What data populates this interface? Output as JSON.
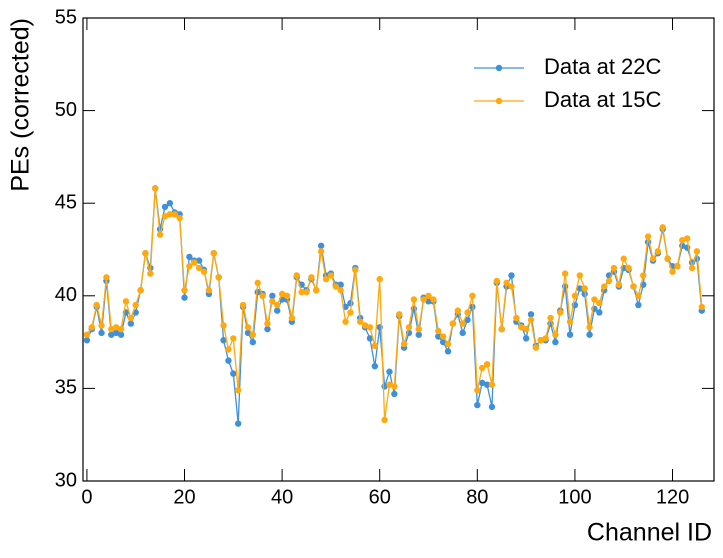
{
  "chart_data": {
    "type": "line",
    "x_label": "Channel ID",
    "y_label": "PEs (corrected)",
    "x": [
      0,
      1,
      2,
      3,
      4,
      5,
      6,
      7,
      8,
      9,
      10,
      11,
      12,
      13,
      14,
      15,
      16,
      17,
      18,
      19,
      20,
      21,
      22,
      23,
      24,
      25,
      26,
      27,
      28,
      29,
      30,
      31,
      32,
      33,
      34,
      35,
      36,
      37,
      38,
      39,
      40,
      41,
      42,
      43,
      44,
      45,
      46,
      47,
      48,
      49,
      50,
      51,
      52,
      53,
      54,
      55,
      56,
      57,
      58,
      59,
      60,
      61,
      62,
      63,
      64,
      65,
      66,
      67,
      68,
      69,
      70,
      71,
      72,
      73,
      74,
      75,
      76,
      77,
      78,
      79,
      80,
      81,
      82,
      83,
      84,
      85,
      86,
      87,
      88,
      89,
      90,
      91,
      92,
      93,
      94,
      95,
      96,
      97,
      98,
      99,
      100,
      101,
      102,
      103,
      104,
      105,
      106,
      107,
      108,
      109,
      110,
      111,
      112,
      113,
      114,
      115,
      116,
      117,
      118,
      119,
      120,
      121,
      122,
      123,
      124,
      125,
      126
    ],
    "series": [
      {
        "name": "Data at 22C",
        "color": "#3f90da",
        "values": [
          37.6,
          38.2,
          39.4,
          38.0,
          40.8,
          37.9,
          38.0,
          37.9,
          39.1,
          38.5,
          39.1,
          40.3,
          42.3,
          41.5,
          45.8,
          43.6,
          44.8,
          45.0,
          44.5,
          44.4,
          39.9,
          42.1,
          41.9,
          41.9,
          41.4,
          40.1,
          42.3,
          41.0,
          37.6,
          36.5,
          35.8,
          33.1,
          39.4,
          38.0,
          37.5,
          40.2,
          40.1,
          38.2,
          40.0,
          39.2,
          39.8,
          39.8,
          38.6,
          41.0,
          40.6,
          40.3,
          40.9,
          40.3,
          42.7,
          41.1,
          41.2,
          40.6,
          40.6,
          39.4,
          39.6,
          41.5,
          38.8,
          38.3,
          37.7,
          36.2,
          38.3,
          35.1,
          35.9,
          34.7,
          38.9,
          37.2,
          38.0,
          39.3,
          37.9,
          39.9,
          39.7,
          39.7,
          37.8,
          37.5,
          37.0,
          38.5,
          39.0,
          38.0,
          38.7,
          39.4,
          34.1,
          35.3,
          35.2,
          34.0,
          40.7,
          38.2,
          40.5,
          41.1,
          38.6,
          38.4,
          37.7,
          39.0,
          37.3,
          37.6,
          37.6,
          38.5,
          37.5,
          39.2,
          40.5,
          37.9,
          39.5,
          40.4,
          40.1,
          37.9,
          39.3,
          39.1,
          40.3,
          41.1,
          41.3,
          40.5,
          41.5,
          41.4,
          40.5,
          39.5,
          40.6,
          42.9,
          41.9,
          42.3,
          43.6,
          42.0,
          41.6,
          41.6,
          42.7,
          42.6,
          41.8,
          42.0,
          39.2
        ]
      },
      {
        "name": "Data at 15C",
        "color": "#ffa90e",
        "values": [
          37.9,
          38.3,
          39.5,
          38.4,
          41.0,
          38.2,
          38.3,
          38.2,
          39.7,
          38.8,
          39.5,
          40.3,
          42.3,
          41.2,
          45.8,
          43.3,
          44.3,
          44.4,
          44.4,
          44.2,
          40.3,
          41.6,
          41.8,
          41.5,
          41.3,
          40.3,
          42.3,
          41.0,
          38.4,
          37.1,
          37.7,
          34.9,
          39.5,
          38.3,
          37.9,
          40.7,
          40.0,
          38.5,
          39.7,
          39.5,
          40.1,
          40.0,
          38.8,
          41.1,
          40.2,
          40.2,
          41.0,
          40.3,
          42.4,
          40.9,
          41.1,
          40.5,
          40.3,
          38.6,
          39.1,
          41.4,
          38.6,
          38.4,
          38.3,
          37.3,
          40.9,
          33.3,
          35.2,
          35.1,
          39.0,
          37.4,
          38.3,
          39.8,
          38.2,
          39.8,
          40.0,
          39.8,
          38.1,
          37.8,
          37.4,
          38.5,
          39.2,
          38.5,
          39.1,
          40.0,
          34.9,
          36.1,
          36.3,
          35.2,
          40.8,
          38.2,
          40.7,
          40.5,
          38.8,
          38.3,
          38.2,
          38.7,
          37.2,
          37.6,
          37.7,
          38.8,
          37.9,
          39.1,
          41.2,
          38.6,
          40.0,
          41.1,
          40.4,
          38.3,
          39.8,
          39.6,
          40.5,
          40.8,
          41.5,
          40.6,
          42.0,
          41.5,
          40.5,
          40.0,
          41.1,
          43.2,
          42.0,
          42.4,
          43.7,
          42.0,
          41.3,
          41.6,
          43.0,
          43.1,
          41.5,
          42.4,
          39.4
        ]
      }
    ],
    "xlim": [
      -0.8,
      128.5
    ],
    "xticks": [
      0,
      20,
      40,
      60,
      80,
      100,
      120
    ],
    "ylim": [
      30,
      55
    ],
    "yticks": [
      30,
      35,
      40,
      45,
      50,
      55
    ],
    "legend": "upper right",
    "grid": false
  }
}
